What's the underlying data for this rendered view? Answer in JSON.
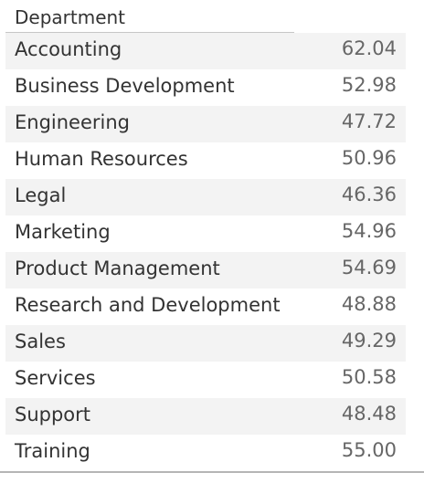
{
  "chart_data": {
    "type": "table",
    "columns": [
      "Department",
      ""
    ],
    "header": "Department",
    "rows": [
      {
        "department": "Accounting",
        "value": "62.04"
      },
      {
        "department": "Business Development",
        "value": "52.98"
      },
      {
        "department": "Engineering",
        "value": "47.72"
      },
      {
        "department": "Human Resources",
        "value": "50.96"
      },
      {
        "department": "Legal",
        "value": "46.36"
      },
      {
        "department": "Marketing",
        "value": "54.96"
      },
      {
        "department": "Product Management",
        "value": "54.69"
      },
      {
        "department": "Research and Development",
        "value": "48.88"
      },
      {
        "department": "Sales",
        "value": "49.29"
      },
      {
        "department": "Services",
        "value": "50.58"
      },
      {
        "department": "Support",
        "value": "48.48"
      },
      {
        "department": "Training",
        "value": "55.00"
      }
    ]
  }
}
